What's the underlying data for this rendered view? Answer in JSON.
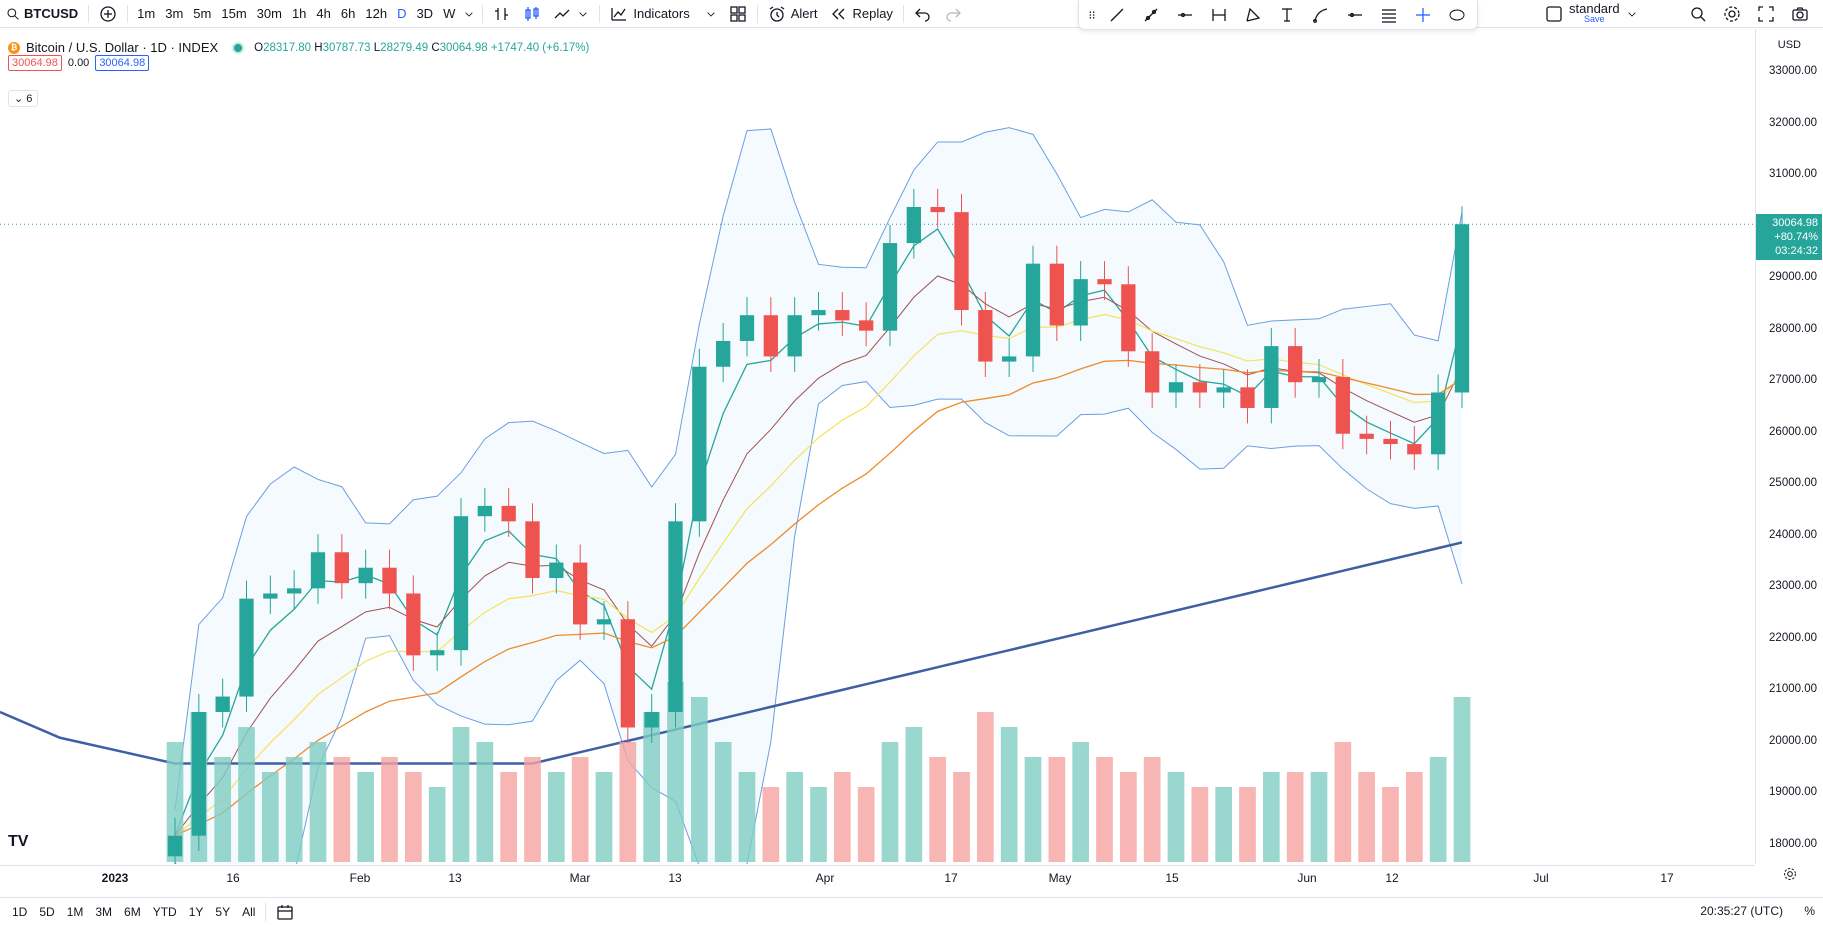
{
  "toolbar": {
    "symbol": "BTCUSD",
    "timeframes": [
      "1m",
      "3m",
      "5m",
      "15m",
      "30m",
      "1h",
      "4h",
      "6h",
      "12h",
      "D",
      "3D",
      "W"
    ],
    "active_timeframe": "D",
    "indicators_label": "Indicators",
    "alert_label": "Alert",
    "replay_label": "Replay",
    "layout_name": "standard",
    "layout_save": "Save"
  },
  "legend": {
    "title": "Bitcoin / U.S. Dollar · 1D · INDEX",
    "open_key": "O",
    "open": "28317.80",
    "high_key": "H",
    "high": "30787.73",
    "low_key": "L",
    "low": "28279.49",
    "close_key": "C",
    "close": "30064.98",
    "change": "+1747.40 (+6.17%)",
    "bid": "30064.98",
    "spread": "0.00",
    "ask": "30064.98",
    "indicators_count": "6"
  },
  "price_axis": {
    "currency": "USD",
    "labels": [
      "33000.00",
      "32000.00",
      "31000.00",
      "30000.00",
      "29000.00",
      "28000.00",
      "27000.00",
      "26000.00",
      "25000.00",
      "24000.00",
      "23000.00",
      "22000.00",
      "21000.00",
      "20000.00",
      "19000.00",
      "18000.00"
    ],
    "current_price": "30064.98",
    "current_change": "+80.74%",
    "countdown": "03:24:32"
  },
  "time_axis": {
    "labels": [
      {
        "text": "2023",
        "bold": true
      },
      {
        "text": "16",
        "bold": false
      },
      {
        "text": "Feb",
        "bold": false
      },
      {
        "text": "13",
        "bold": false
      },
      {
        "text": "Mar",
        "bold": false
      },
      {
        "text": "13",
        "bold": false
      },
      {
        "text": "Apr",
        "bold": false
      },
      {
        "text": "17",
        "bold": false
      },
      {
        "text": "May",
        "bold": false
      },
      {
        "text": "15",
        "bold": false
      },
      {
        "text": "Jun",
        "bold": false
      },
      {
        "text": "12",
        "bold": false
      },
      {
        "text": "Jul",
        "bold": false
      },
      {
        "text": "17",
        "bold": false
      }
    ]
  },
  "bottom": {
    "ranges": [
      "1D",
      "5D",
      "1M",
      "3M",
      "6M",
      "YTD",
      "1Y",
      "5Y",
      "All"
    ],
    "clock": "20:35:27 (UTC)",
    "percent": "%"
  },
  "logo": "TV",
  "colors": {
    "up": "#26a69a",
    "down": "#ef5350",
    "up_volume": "#7fcdc3",
    "down_volume": "#f5a3a1",
    "bollinger": "#6a9fe0",
    "ema_fast": "#26a69a",
    "ema_slow": "#a05050",
    "ma_yellow": "#f5e35a",
    "ma_orange": "#ef8a2b",
    "ma_long": "#3f5fa5",
    "accent": "#2962ff"
  },
  "chart_data": {
    "type": "candlestick",
    "symbol": "BTCUSD",
    "interval": "1D",
    "ylim": [
      18000,
      33000
    ],
    "current_price": 30064.98,
    "dates": [
      "2023-01-10",
      "2023-01-13",
      "2023-01-16",
      "2023-01-19",
      "2023-01-22",
      "2023-01-25",
      "2023-01-28",
      "2023-01-31",
      "2023-02-03",
      "2023-02-06",
      "2023-02-09",
      "2023-02-12",
      "2023-02-15",
      "2023-02-18",
      "2023-02-21",
      "2023-02-24",
      "2023-02-27",
      "2023-03-02",
      "2023-03-05",
      "2023-03-08",
      "2023-03-11",
      "2023-03-14",
      "2023-03-17",
      "2023-03-20",
      "2023-03-23",
      "2023-03-26",
      "2023-03-29",
      "2023-04-01",
      "2023-04-04",
      "2023-04-07",
      "2023-04-10",
      "2023-04-13",
      "2023-04-16",
      "2023-04-19",
      "2023-04-22",
      "2023-04-25",
      "2023-04-28",
      "2023-05-01",
      "2023-05-04",
      "2023-05-07",
      "2023-05-10",
      "2023-05-13",
      "2023-05-16",
      "2023-05-19",
      "2023-05-22",
      "2023-05-25",
      "2023-05-28",
      "2023-05-31",
      "2023-06-03",
      "2023-06-06",
      "2023-06-09",
      "2023-06-12",
      "2023-06-15",
      "2023-06-18",
      "2023-06-21"
    ],
    "close": [
      18200,
      20600,
      20900,
      22800,
      22900,
      23000,
      23700,
      23100,
      23400,
      22900,
      21700,
      21800,
      24400,
      24600,
      24300,
      23200,
      23500,
      22300,
      22400,
      20300,
      20600,
      24300,
      27300,
      27800,
      28300,
      27500,
      28300,
      28400,
      28200,
      28000,
      29700,
      30400,
      30300,
      28400,
      27400,
      27500,
      29300,
      28100,
      29000,
      28900,
      27600,
      26800,
      27000,
      26800,
      26900,
      26500,
      27700,
      27000,
      27100,
      26000,
      25900,
      25800,
      25600,
      26800,
      30064.98
    ],
    "volume": [
      0.8,
      1.0,
      0.7,
      0.9,
      0.6,
      0.7,
      0.8,
      0.7,
      0.6,
      0.7,
      0.6,
      0.5,
      0.9,
      0.8,
      0.6,
      0.7,
      0.6,
      0.7,
      0.6,
      0.8,
      1.0,
      1.2,
      1.1,
      0.8,
      0.6,
      0.5,
      0.6,
      0.5,
      0.6,
      0.5,
      0.8,
      0.9,
      0.7,
      0.6,
      1.0,
      0.9,
      0.7,
      0.7,
      0.8,
      0.7,
      0.6,
      0.7,
      0.6,
      0.5,
      0.5,
      0.5,
      0.6,
      0.6,
      0.6,
      0.8,
      0.6,
      0.5,
      0.6,
      0.7,
      1.1
    ],
    "overlays": [
      "bollinger_bands",
      "ema_fast",
      "ema_slow",
      "ma_yellow",
      "ma_orange",
      "ma_200"
    ]
  }
}
